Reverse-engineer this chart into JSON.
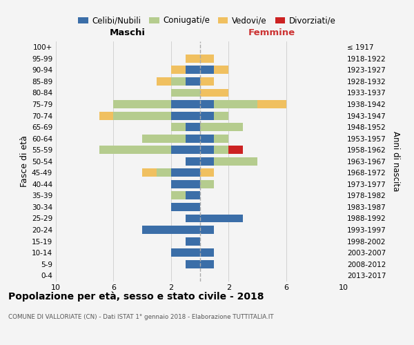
{
  "age_groups": [
    "0-4",
    "5-9",
    "10-14",
    "15-19",
    "20-24",
    "25-29",
    "30-34",
    "35-39",
    "40-44",
    "45-49",
    "50-54",
    "55-59",
    "60-64",
    "65-69",
    "70-74",
    "75-79",
    "80-84",
    "85-89",
    "90-94",
    "95-99",
    "100+"
  ],
  "birth_years": [
    "2013-2017",
    "2008-2012",
    "2003-2007",
    "1998-2002",
    "1993-1997",
    "1988-1992",
    "1983-1987",
    "1978-1982",
    "1973-1977",
    "1968-1972",
    "1963-1967",
    "1958-1962",
    "1953-1957",
    "1948-1952",
    "1943-1947",
    "1938-1942",
    "1933-1937",
    "1928-1932",
    "1923-1927",
    "1918-1922",
    "≤ 1917"
  ],
  "maschi": {
    "celibi": [
      0,
      1,
      2,
      1,
      4,
      1,
      2,
      1,
      2,
      2,
      1,
      2,
      1,
      1,
      2,
      2,
      0,
      1,
      1,
      0,
      0
    ],
    "coniugati": [
      0,
      0,
      0,
      0,
      0,
      0,
      0,
      1,
      0,
      1,
      0,
      5,
      3,
      1,
      4,
      4,
      2,
      1,
      0,
      0,
      0
    ],
    "vedovi": [
      0,
      0,
      0,
      0,
      0,
      0,
      0,
      0,
      0,
      1,
      0,
      0,
      0,
      0,
      1,
      0,
      0,
      1,
      1,
      1,
      0
    ],
    "divorziati": [
      0,
      0,
      0,
      0,
      0,
      0,
      0,
      0,
      0,
      0,
      0,
      0,
      0,
      0,
      0,
      0,
      0,
      0,
      0,
      0,
      0
    ]
  },
  "femmine": {
    "nubili": [
      0,
      1,
      1,
      0,
      1,
      3,
      0,
      0,
      0,
      0,
      1,
      1,
      1,
      0,
      1,
      1,
      0,
      0,
      1,
      0,
      0
    ],
    "coniugate": [
      0,
      0,
      0,
      0,
      0,
      0,
      0,
      0,
      1,
      0,
      3,
      1,
      1,
      3,
      1,
      3,
      0,
      0,
      0,
      0,
      0
    ],
    "vedove": [
      0,
      0,
      0,
      0,
      0,
      0,
      0,
      0,
      0,
      1,
      0,
      0,
      0,
      0,
      0,
      2,
      2,
      1,
      1,
      1,
      0
    ],
    "divorziate": [
      0,
      0,
      0,
      0,
      0,
      0,
      0,
      0,
      0,
      0,
      0,
      1,
      0,
      0,
      0,
      0,
      0,
      0,
      0,
      0,
      0
    ]
  },
  "colors": {
    "celibi": "#3b6ea8",
    "coniugati": "#b5cc8e",
    "vedovi": "#f0c060",
    "divorziati": "#cc2222"
  },
  "legend_labels": [
    "Celibi/Nubili",
    "Coniugati/e",
    "Vedovi/e",
    "Divorziati/e"
  ],
  "xlim": 10,
  "title": "Popolazione per età, sesso e stato civile - 2018",
  "subtitle": "COMUNE DI VALLORIATE (CN) - Dati ISTAT 1° gennaio 2018 - Elaborazione TUTTITALIA.IT",
  "ylabel_left": "Fasce di età",
  "ylabel_right": "Anni di nascita",
  "xlabel_maschi": "Maschi",
  "xlabel_femmine": "Femmine",
  "bg_color": "#f4f4f4",
  "grid_color": "#cccccc",
  "femmine_color": "#cc3333"
}
